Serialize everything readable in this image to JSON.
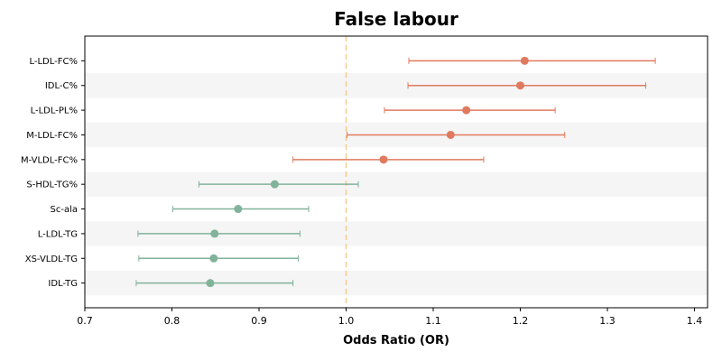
{
  "chart_data": {
    "type": "forest",
    "title": "False labour",
    "xlabel": "Odds Ratio (OR)",
    "ylabel": "",
    "xlim": [
      0.7,
      1.415
    ],
    "xticks": [
      0.7,
      0.8,
      0.9,
      1.0,
      1.1,
      1.2,
      1.3,
      1.4
    ],
    "xtick_labels": [
      "0.7",
      "0.8",
      "0.9",
      "1.0",
      "1.1",
      "1.2",
      "1.3",
      "1.4"
    ],
    "reference_line": 1.0,
    "grid": false,
    "colors": {
      "positive": "#e07a5f",
      "negative": "#81b29a",
      "reference": "#f2cc8f",
      "band": "#f5f5f5"
    },
    "rows": [
      {
        "label": "L-LDL-FC%",
        "or": 1.205,
        "lower": 1.072,
        "upper": 1.355,
        "direction": "positive"
      },
      {
        "label": "IDL-C%",
        "or": 1.2,
        "lower": 1.071,
        "upper": 1.344,
        "direction": "positive"
      },
      {
        "label": "L-LDL-PL%",
        "or": 1.138,
        "lower": 1.044,
        "upper": 1.24,
        "direction": "positive"
      },
      {
        "label": "M-LDL-FC%",
        "or": 1.12,
        "lower": 1.001,
        "upper": 1.251,
        "direction": "positive"
      },
      {
        "label": "M-VLDL-FC%",
        "or": 1.043,
        "lower": 0.939,
        "upper": 1.158,
        "direction": "positive"
      },
      {
        "label": "S-HDL-TG%",
        "or": 0.918,
        "lower": 0.831,
        "upper": 1.014,
        "direction": "negative"
      },
      {
        "label": "Sc-ala",
        "or": 0.876,
        "lower": 0.801,
        "upper": 0.957,
        "direction": "negative"
      },
      {
        "label": "L-LDL-TG",
        "or": 0.849,
        "lower": 0.761,
        "upper": 0.947,
        "direction": "negative"
      },
      {
        "label": "XS-VLDL-TG",
        "or": 0.848,
        "lower": 0.762,
        "upper": 0.945,
        "direction": "negative"
      },
      {
        "label": "IDL-TG",
        "or": 0.844,
        "lower": 0.759,
        "upper": 0.939,
        "direction": "negative"
      }
    ]
  }
}
